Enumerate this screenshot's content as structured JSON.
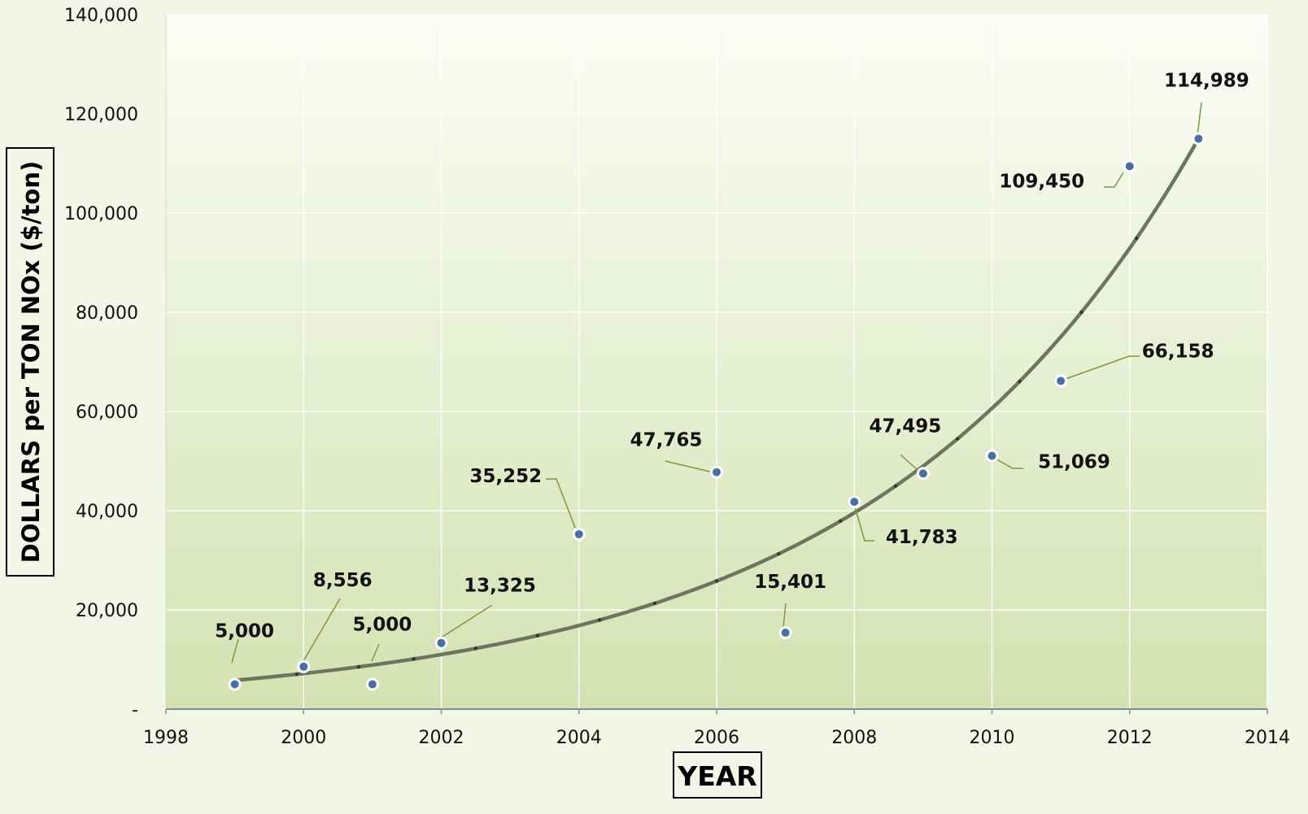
{
  "chart_data": {
    "type": "scatter",
    "title": "",
    "xlabel": "YEAR",
    "ylabel": "DOLLARS per TON NOx  ($/ton)",
    "xlim": [
      1998,
      2014
    ],
    "ylim": [
      0,
      140000
    ],
    "x_ticks": [
      1998,
      2000,
      2002,
      2004,
      2006,
      2008,
      2010,
      2012,
      2014
    ],
    "x_tick_labels": [
      "1998",
      "2000",
      "2002",
      "2004",
      "2006",
      "2008",
      "2010",
      "2012",
      "2014"
    ],
    "y_ticks": [
      0,
      20000,
      40000,
      60000,
      80000,
      100000,
      120000,
      140000
    ],
    "y_tick_labels": [
      "-",
      "20,000",
      "40,000",
      "60,000",
      "80,000",
      "100,000",
      "120,000",
      "140,000"
    ],
    "grid": true,
    "legend": "none",
    "series": [
      {
        "points": [
          {
            "x": 1999,
            "y": 5000,
            "label": "5,000"
          },
          {
            "x": 2000,
            "y": 8556,
            "label": "8,556"
          },
          {
            "x": 2001,
            "y": 5000,
            "label": "5,000"
          },
          {
            "x": 2002,
            "y": 13325,
            "label": "13,325"
          },
          {
            "x": 2004,
            "y": 35252,
            "label": "35,252"
          },
          {
            "x": 2006,
            "y": 47765,
            "label": "47,765"
          },
          {
            "x": 2007,
            "y": 15401,
            "label": "15,401"
          },
          {
            "x": 2008,
            "y": 41783,
            "label": "41,783"
          },
          {
            "x": 2009,
            "y": 47495,
            "label": "47,495"
          },
          {
            "x": 2010,
            "y": 51069,
            "label": "51,069"
          },
          {
            "x": 2011,
            "y": 66158,
            "label": "66,158"
          },
          {
            "x": 2012,
            "y": 109450,
            "label": "109,450"
          },
          {
            "x": 2013,
            "y": 114989,
            "label": "114,989"
          }
        ]
      }
    ],
    "trendline": {
      "type": "exponential",
      "x_start": 1999,
      "y_start": 5800,
      "x_end": 2013,
      "y_end": 115000
    },
    "colors": {
      "marker": "#4a6fa5",
      "marker_outline": "#ffffff",
      "trendline": "#6b7560",
      "leader": "#7a9a3a",
      "plot_top": "#fbfdf6",
      "plot_bottom": "#d4e2b2",
      "page": "#f3f7e8"
    }
  }
}
